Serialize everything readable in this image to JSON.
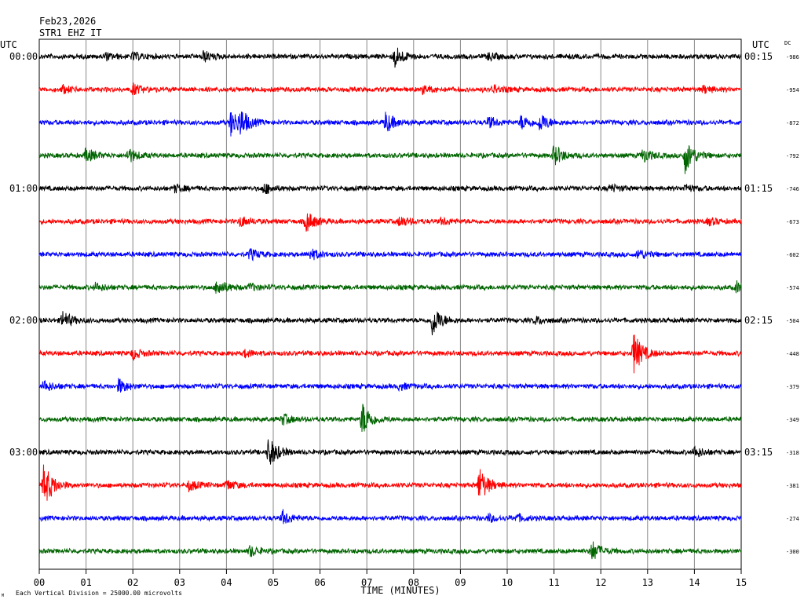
{
  "header": {
    "date": "Feb23,2026",
    "station": "STR1 EHZ IT"
  },
  "labels": {
    "utc_left": "UTC",
    "utc_right": "UTC",
    "dc": "DC",
    "xlabel": "TIME (MINUTES)",
    "footer": "Each Vertical Division = 25000.00 microvolts",
    "corner_mark": "M"
  },
  "chart_data": {
    "type": "line",
    "title": "",
    "xlabel": "TIME (MINUTES)",
    "ylabel": "",
    "xlim": [
      0,
      15
    ],
    "x_ticks": [
      "00",
      "01",
      "02",
      "03",
      "04",
      "05",
      "06",
      "07",
      "08",
      "09",
      "10",
      "11",
      "12",
      "13",
      "14",
      "15"
    ],
    "grid": true,
    "trace_colors": [
      "#000000",
      "#ff0000",
      "#0000ff",
      "#006400"
    ],
    "left_time_labels": [
      "00:00",
      "01:00",
      "02:00",
      "03:00"
    ],
    "right_time_labels": [
      "00:15",
      "01:15",
      "02:15",
      "03:15"
    ],
    "dc_offsets": [
      "-986",
      "-954",
      "-872",
      "-792",
      "-746",
      "-673",
      "-602",
      "-574",
      "-504",
      "-448",
      "-379",
      "-349",
      "-318",
      "-381",
      "-274",
      "-300"
    ],
    "events": [
      [
        [
          1.4,
          2
        ],
        [
          2.0,
          2
        ],
        [
          3.5,
          3
        ],
        [
          7.6,
          6
        ],
        [
          9.6,
          2
        ]
      ],
      [
        [
          0.5,
          2
        ],
        [
          2.0,
          3
        ],
        [
          8.2,
          2
        ],
        [
          9.7,
          2
        ],
        [
          14.2,
          2
        ]
      ],
      [
        [
          4.1,
          8
        ],
        [
          4.3,
          6
        ],
        [
          7.4,
          6
        ],
        [
          9.6,
          3
        ],
        [
          10.3,
          4
        ],
        [
          10.7,
          5
        ]
      ],
      [
        [
          1.0,
          4
        ],
        [
          1.9,
          4
        ],
        [
          11.0,
          6
        ],
        [
          12.9,
          4
        ],
        [
          13.8,
          10
        ]
      ],
      [
        [
          2.9,
          2
        ],
        [
          4.8,
          3
        ],
        [
          12.2,
          2
        ],
        [
          13.8,
          2
        ]
      ],
      [
        [
          4.3,
          3
        ],
        [
          5.7,
          6
        ],
        [
          7.7,
          3
        ],
        [
          8.6,
          2
        ],
        [
          14.3,
          2
        ]
      ],
      [
        [
          4.5,
          3
        ],
        [
          5.8,
          3
        ],
        [
          12.8,
          3
        ]
      ],
      [
        [
          1.2,
          2
        ],
        [
          3.8,
          5
        ],
        [
          4.5,
          2
        ],
        [
          14.9,
          3
        ]
      ],
      [
        [
          0.5,
          5
        ],
        [
          8.4,
          9
        ],
        [
          10.6,
          2
        ]
      ],
      [
        [
          2.0,
          3
        ],
        [
          4.4,
          2
        ],
        [
          12.7,
          12
        ]
      ],
      [
        [
          0.1,
          3
        ],
        [
          1.7,
          4
        ],
        [
          7.7,
          2
        ]
      ],
      [
        [
          5.2,
          3
        ],
        [
          6.9,
          10
        ]
      ],
      [
        [
          4.9,
          9
        ],
        [
          14.0,
          3
        ]
      ],
      [
        [
          0.1,
          13
        ],
        [
          3.2,
          3
        ],
        [
          4.0,
          3
        ],
        [
          9.4,
          10
        ]
      ],
      [
        [
          5.2,
          4
        ],
        [
          9.6,
          2
        ],
        [
          10.2,
          2
        ]
      ],
      [
        [
          4.5,
          3
        ],
        [
          11.8,
          6
        ]
      ]
    ]
  }
}
